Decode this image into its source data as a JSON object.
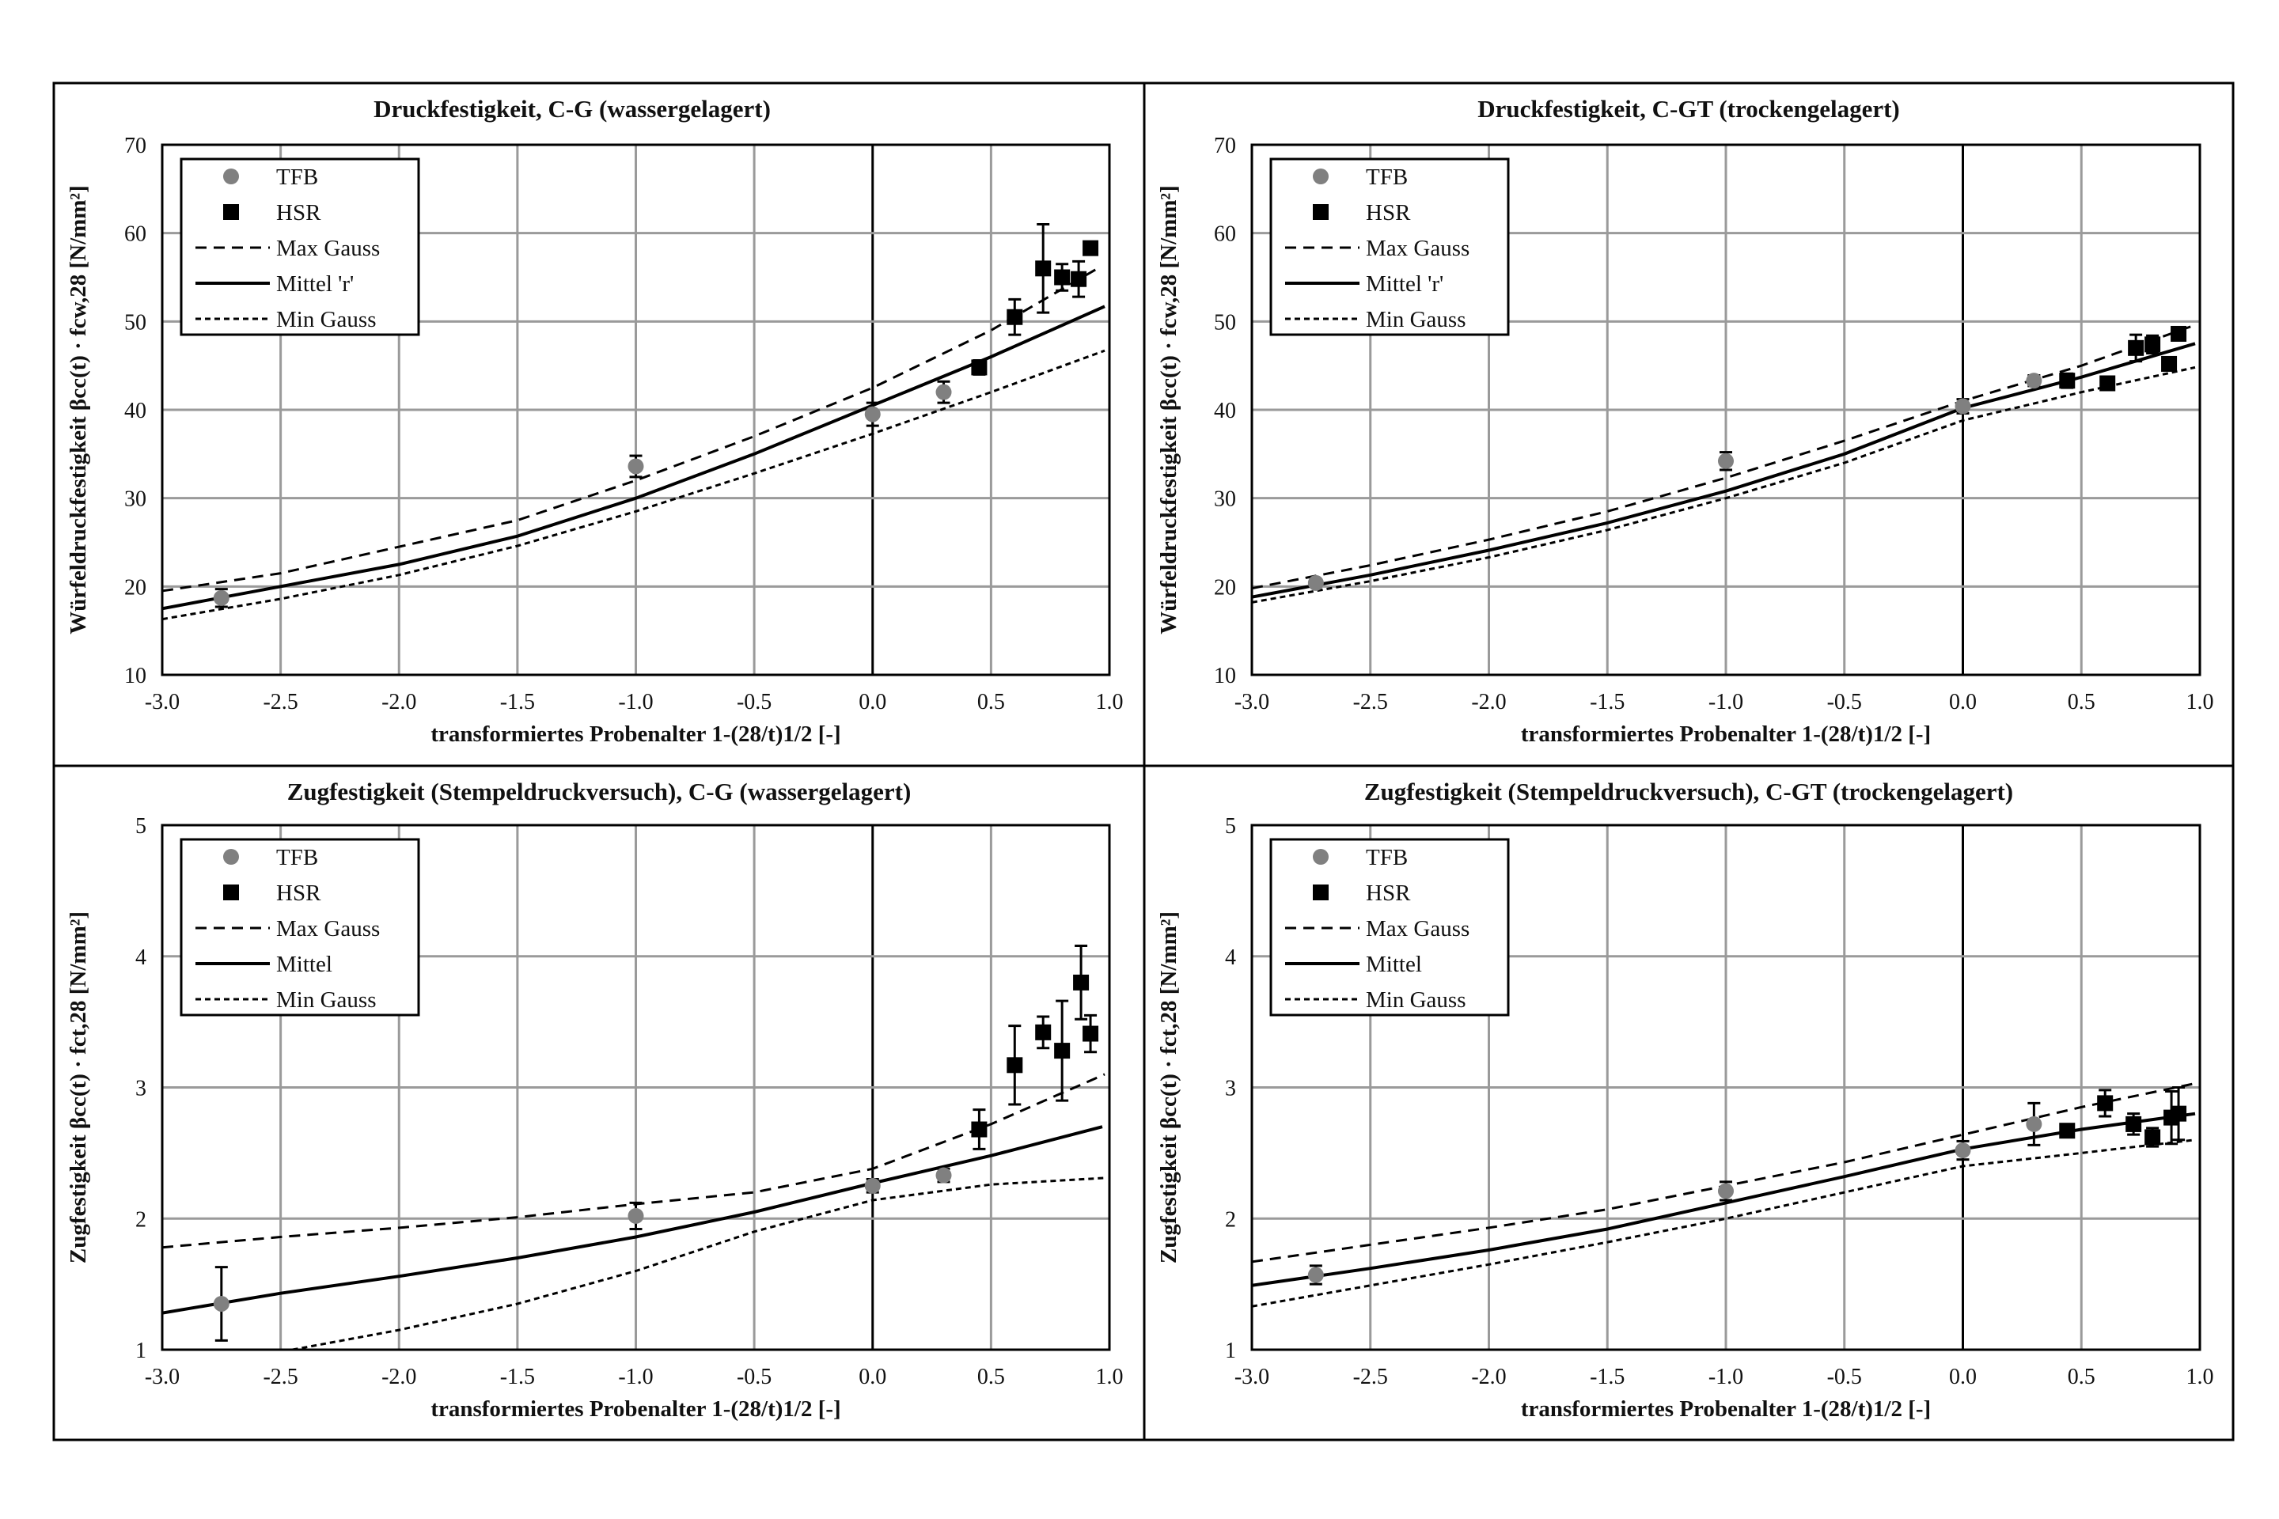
{
  "chart_data": [
    {
      "type": "scatter",
      "title": "Druckfestigkeit, C-G (wassergelagert)",
      "xlabel": "transformiertes Probenalter 1-(28/t)1/2 [-]",
      "ylabel": "Würfeldruckfestigkeit βcc(t) · fcw,28 [N/mm²]",
      "xlim": [
        -3.0,
        1.0
      ],
      "ylim": [
        10,
        70
      ],
      "xticks": [
        "-3.0",
        "-2.5",
        "-2.0",
        "-1.5",
        "-1.0",
        "-0.5",
        "0.0",
        "0.5",
        "1.0"
      ],
      "yticks": [
        "10",
        "20",
        "30",
        "40",
        "50",
        "60",
        "70"
      ],
      "grid": true,
      "legend_position": "top-left",
      "legend": [
        "TFB",
        "HSR",
        "Max Gauss",
        "Mittel 'r'",
        "Min Gauss"
      ],
      "series": [
        {
          "name": "TFB",
          "points": [
            [
              -2.75,
              18.7,
              1.0
            ],
            [
              -1.0,
              33.6,
              1.2
            ],
            [
              0.0,
              39.5,
              1.3
            ],
            [
              0.3,
              42.0,
              1.2
            ]
          ]
        },
        {
          "name": "HSR",
          "points": [
            [
              0.45,
              44.8,
              0.8
            ],
            [
              0.6,
              50.5,
              2.0
            ],
            [
              0.72,
              56.0,
              5.0
            ],
            [
              0.8,
              55.0,
              1.5
            ],
            [
              0.87,
              54.8,
              2.0
            ],
            [
              0.92,
              58.3,
              0.5
            ]
          ]
        },
        {
          "name": "Max Gauss",
          "points": [
            [
              -3.0,
              19.5
            ],
            [
              -2.5,
              21.5
            ],
            [
              -2.0,
              24.5
            ],
            [
              -1.5,
              27.5
            ],
            [
              -1.0,
              32.0
            ],
            [
              -0.5,
              37.0
            ],
            [
              0.0,
              42.5
            ],
            [
              0.5,
              49.0
            ],
            [
              0.95,
              56.0
            ]
          ]
        },
        {
          "name": "Mittel 'r'",
          "points": [
            [
              -3.0,
              17.5
            ],
            [
              -2.5,
              20.0
            ],
            [
              -2.0,
              22.5
            ],
            [
              -1.5,
              25.7
            ],
            [
              -1.0,
              30.0
            ],
            [
              -0.5,
              35.0
            ],
            [
              0.0,
              40.5
            ],
            [
              0.5,
              46.0
            ],
            [
              0.98,
              51.7
            ]
          ]
        },
        {
          "name": "Min Gauss",
          "points": [
            [
              -3.0,
              16.3
            ],
            [
              -2.5,
              18.6
            ],
            [
              -2.0,
              21.3
            ],
            [
              -1.5,
              24.6
            ],
            [
              -1.0,
              28.5
            ],
            [
              -0.5,
              32.8
            ],
            [
              0.0,
              37.3
            ],
            [
              0.5,
              42.0
            ],
            [
              0.98,
              46.7
            ]
          ]
        }
      ]
    },
    {
      "type": "scatter",
      "title": "Druckfestigkeit, C-GT (trockengelagert)",
      "xlabel": "transformiertes Probenalter 1-(28/t)1/2 [-]",
      "ylabel": "Würfeldruckfestigkeit βcc(t) · fcw,28 [N/mm²]",
      "xlim": [
        -3.0,
        1.0
      ],
      "ylim": [
        10,
        70
      ],
      "xticks": [
        "-3.0",
        "-2.5",
        "-2.0",
        "-1.5",
        "-1.0",
        "-0.5",
        "0.0",
        "0.5",
        "1.0"
      ],
      "yticks": [
        "10",
        "20",
        "30",
        "40",
        "50",
        "60",
        "70"
      ],
      "grid": true,
      "legend_position": "top-left",
      "legend": [
        "TFB",
        "HSR",
        "Max Gauss",
        "Mittel 'r'",
        "Min Gauss"
      ],
      "series": [
        {
          "name": "TFB",
          "points": [
            [
              -2.73,
              20.4,
              0.4
            ],
            [
              -1.0,
              34.2,
              1.0
            ],
            [
              0.0,
              40.4,
              0.8
            ],
            [
              0.3,
              43.3,
              0.6
            ]
          ]
        },
        {
          "name": "HSR",
          "points": [
            [
              0.44,
              43.3,
              0.8
            ],
            [
              0.61,
              43.0,
              0.5
            ],
            [
              0.73,
              47.0,
              1.5
            ],
            [
              0.8,
              47.4,
              1.0
            ],
            [
              0.87,
              45.2,
              0.5
            ],
            [
              0.91,
              48.6,
              0.7
            ]
          ]
        },
        {
          "name": "Max Gauss",
          "points": [
            [
              -3.0,
              19.8
            ],
            [
              -2.5,
              22.4
            ],
            [
              -2.0,
              25.3
            ],
            [
              -1.5,
              28.5
            ],
            [
              -1.0,
              32.3
            ],
            [
              -0.5,
              36.5
            ],
            [
              0.0,
              41.0
            ],
            [
              0.5,
              45.0
            ],
            [
              0.98,
              49.6
            ]
          ]
        },
        {
          "name": "Mittel 'r'",
          "points": [
            [
              -3.0,
              18.8
            ],
            [
              -2.5,
              21.3
            ],
            [
              -2.0,
              24.1
            ],
            [
              -1.5,
              27.2
            ],
            [
              -1.0,
              30.8
            ],
            [
              -0.5,
              35.0
            ],
            [
              0.0,
              40.2
            ],
            [
              0.5,
              43.7
            ],
            [
              0.98,
              47.5
            ]
          ]
        },
        {
          "name": "Min Gauss",
          "points": [
            [
              -3.0,
              18.2
            ],
            [
              -2.5,
              20.6
            ],
            [
              -2.0,
              23.3
            ],
            [
              -1.5,
              26.4
            ],
            [
              -1.0,
              30.0
            ],
            [
              -0.5,
              34.0
            ],
            [
              0.0,
              38.8
            ],
            [
              0.5,
              42.0
            ],
            [
              0.98,
              44.8
            ]
          ]
        }
      ]
    },
    {
      "type": "scatter",
      "title": "Zugfestigkeit (Stempeldruckversuch), C-G (wassergelagert)",
      "xlabel": "transformiertes Probenalter 1-(28/t)1/2 [-]",
      "ylabel": "Zugfestigkeit βcc(t) · fct,28 [N/mm²]",
      "xlim": [
        -3.0,
        1.0
      ],
      "ylim": [
        1,
        5
      ],
      "xticks": [
        "-3.0",
        "-2.5",
        "-2.0",
        "-1.5",
        "-1.0",
        "-0.5",
        "0.0",
        "0.5",
        "1.0"
      ],
      "yticks": [
        "1",
        "2",
        "3",
        "4",
        "5"
      ],
      "grid": true,
      "legend_position": "top-left",
      "legend": [
        "TFB",
        "HSR",
        "Max Gauss",
        "Mittel",
        "Min Gauss"
      ],
      "series": [
        {
          "name": "TFB",
          "points": [
            [
              -2.75,
              1.35,
              0.28
            ],
            [
              -1.0,
              2.02,
              0.1
            ],
            [
              0.0,
              2.25,
              0.05
            ],
            [
              0.3,
              2.33,
              0.05
            ]
          ]
        },
        {
          "name": "HSR",
          "points": [
            [
              0.45,
              2.68,
              0.15
            ],
            [
              0.6,
              3.17,
              0.3
            ],
            [
              0.72,
              3.42,
              0.12
            ],
            [
              0.8,
              3.28,
              0.38
            ],
            [
              0.88,
              3.8,
              0.28
            ],
            [
              0.92,
              3.41,
              0.14
            ]
          ]
        },
        {
          "name": "Max Gauss",
          "points": [
            [
              -3.0,
              1.78
            ],
            [
              -2.5,
              1.86
            ],
            [
              -2.0,
              1.93
            ],
            [
              -1.5,
              2.01
            ],
            [
              -1.0,
              2.11
            ],
            [
              -0.5,
              2.2
            ],
            [
              0.0,
              2.38
            ],
            [
              0.5,
              2.72
            ],
            [
              0.98,
              3.1
            ]
          ]
        },
        {
          "name": "Mittel",
          "points": [
            [
              -3.0,
              1.28
            ],
            [
              -2.5,
              1.43
            ],
            [
              -2.0,
              1.56
            ],
            [
              -1.5,
              1.7
            ],
            [
              -1.0,
              1.86
            ],
            [
              -0.5,
              2.05
            ],
            [
              0.0,
              2.27
            ],
            [
              0.5,
              2.48
            ],
            [
              0.97,
              2.7
            ]
          ]
        },
        {
          "name": "Min Gauss",
          "points": [
            [
              -2.45,
              1.0
            ],
            [
              -2.0,
              1.15
            ],
            [
              -1.5,
              1.35
            ],
            [
              -1.0,
              1.6
            ],
            [
              -0.5,
              1.9
            ],
            [
              0.0,
              2.14
            ],
            [
              0.5,
              2.26
            ],
            [
              0.98,
              2.31
            ]
          ]
        }
      ]
    },
    {
      "type": "scatter",
      "title": "Zugfestigkeit (Stempeldruckversuch), C-GT (trockengelagert)",
      "xlabel": "transformiertes Probenalter 1-(28/t)1/2 [-]",
      "ylabel": "Zugfestigkeit βcc(t) · fct,28 [N/mm²]",
      "xlim": [
        -3.0,
        1.0
      ],
      "ylim": [
        1,
        5
      ],
      "xticks": [
        "-3.0",
        "-2.5",
        "-2.0",
        "-1.5",
        "-1.0",
        "-0.5",
        "0.0",
        "0.5",
        "1.0"
      ],
      "yticks": [
        "1",
        "2",
        "3",
        "4",
        "5"
      ],
      "grid": true,
      "legend_position": "top-left",
      "legend": [
        "TFB",
        "HSR",
        "Max Gauss",
        "Mittel",
        "Min Gauss"
      ],
      "series": [
        {
          "name": "TFB",
          "points": [
            [
              -2.73,
              1.57,
              0.07
            ],
            [
              -1.0,
              2.21,
              0.07
            ],
            [
              0.0,
              2.52,
              0.07
            ],
            [
              0.3,
              2.72,
              0.16
            ]
          ]
        },
        {
          "name": "HSR",
          "points": [
            [
              0.44,
              2.67,
              0.04
            ],
            [
              0.6,
              2.88,
              0.1
            ],
            [
              0.72,
              2.72,
              0.08
            ],
            [
              0.8,
              2.62,
              0.07
            ],
            [
              0.88,
              2.77,
              0.2
            ],
            [
              0.91,
              2.8,
              0.2
            ]
          ]
        },
        {
          "name": "Max Gauss",
          "points": [
            [
              -3.0,
              1.67
            ],
            [
              -2.5,
              1.8
            ],
            [
              -2.0,
              1.93
            ],
            [
              -1.5,
              2.07
            ],
            [
              -1.0,
              2.25
            ],
            [
              -0.5,
              2.43
            ],
            [
              0.0,
              2.64
            ],
            [
              0.5,
              2.85
            ],
            [
              0.98,
              3.03
            ]
          ]
        },
        {
          "name": "Mittel",
          "points": [
            [
              -3.0,
              1.49
            ],
            [
              -2.5,
              1.62
            ],
            [
              -2.0,
              1.76
            ],
            [
              -1.5,
              1.92
            ],
            [
              -1.0,
              2.12
            ],
            [
              -0.5,
              2.32
            ],
            [
              0.0,
              2.53
            ],
            [
              0.5,
              2.68
            ],
            [
              0.98,
              2.8
            ]
          ]
        },
        {
          "name": "Min Gauss",
          "points": [
            [
              -3.0,
              1.33
            ],
            [
              -2.5,
              1.49
            ],
            [
              -2.0,
              1.65
            ],
            [
              -1.5,
              1.82
            ],
            [
              -1.0,
              2.0
            ],
            [
              -0.5,
              2.2
            ],
            [
              0.0,
              2.4
            ],
            [
              0.5,
              2.5
            ],
            [
              0.98,
              2.6
            ]
          ]
        }
      ]
    }
  ]
}
